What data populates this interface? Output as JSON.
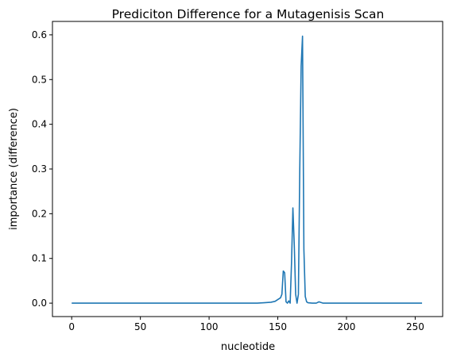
{
  "chart_data": {
    "type": "line",
    "title": "Prediciton Difference for a Mutagenisis Scan",
    "xlabel": "nucleotide",
    "ylabel": "importance (difference)",
    "xlim": [
      -14,
      270
    ],
    "ylim": [
      -0.03,
      0.63
    ],
    "xticks": [
      0,
      50,
      100,
      150,
      200,
      250
    ],
    "xtick_labels": [
      "0",
      "50",
      "100",
      "150",
      "200",
      "250"
    ],
    "yticks": [
      0.0,
      0.1,
      0.2,
      0.3,
      0.4,
      0.5,
      0.6
    ],
    "ytick_labels": [
      "0.0",
      "0.1",
      "0.2",
      "0.3",
      "0.4",
      "0.5",
      "0.6"
    ],
    "grid": false,
    "series": [
      {
        "color": "#1f77b4",
        "x": [
          0,
          50,
          100,
          135,
          140,
          145,
          148,
          150,
          152,
          153,
          154,
          155,
          156,
          157,
          158,
          159,
          160,
          161,
          162,
          163,
          164,
          165,
          166,
          167,
          168,
          169,
          170,
          171,
          172,
          175,
          178,
          180,
          181,
          183,
          185,
          200,
          230,
          255
        ],
        "y": [
          0,
          0,
          0,
          0,
          0.001,
          0.002,
          0.004,
          0.008,
          0.012,
          0.02,
          0.072,
          0.068,
          0.003,
          0.0,
          0.005,
          0.0,
          0.09,
          0.213,
          0.13,
          0.02,
          0.0,
          0.02,
          0.3,
          0.53,
          0.597,
          0.12,
          0.015,
          0.003,
          0.001,
          0.0,
          0.0,
          0.003,
          0.002,
          0.0,
          0.0,
          0.0,
          0.0,
          0.0
        ]
      }
    ]
  }
}
